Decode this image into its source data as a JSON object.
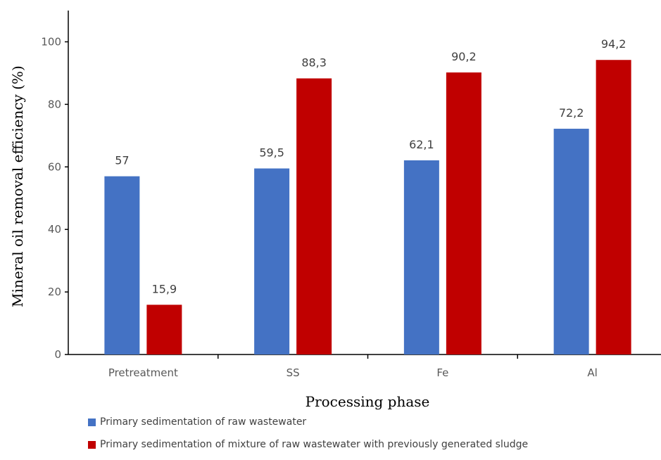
{
  "chart_data": {
    "type": "bar",
    "xlabel": "Processing phase",
    "ylabel": "Mineral oil removal efficiency (%)",
    "categories": [
      "Pretreatment",
      "SS",
      "Fe",
      "Al"
    ],
    "ylim": [
      0,
      110
    ],
    "yticks": [
      0,
      20,
      40,
      60,
      80,
      100
    ],
    "grid": false,
    "legend_position": "bottom",
    "series": [
      {
        "name": "Primary sedimentation of raw wastewater",
        "color": "#4472C4",
        "values": [
          57,
          59.5,
          62.1,
          72.2
        ],
        "labels": [
          "57",
          "59,5",
          "62,1",
          "72,2"
        ]
      },
      {
        "name": "Primary sedimentation of mixture of raw wastewater with previously generated sludge",
        "color": "#C00000",
        "values": [
          15.9,
          88.3,
          90.2,
          94.2
        ],
        "labels": [
          "15,9",
          "88,3",
          "90,2",
          "94,2"
        ]
      }
    ]
  }
}
